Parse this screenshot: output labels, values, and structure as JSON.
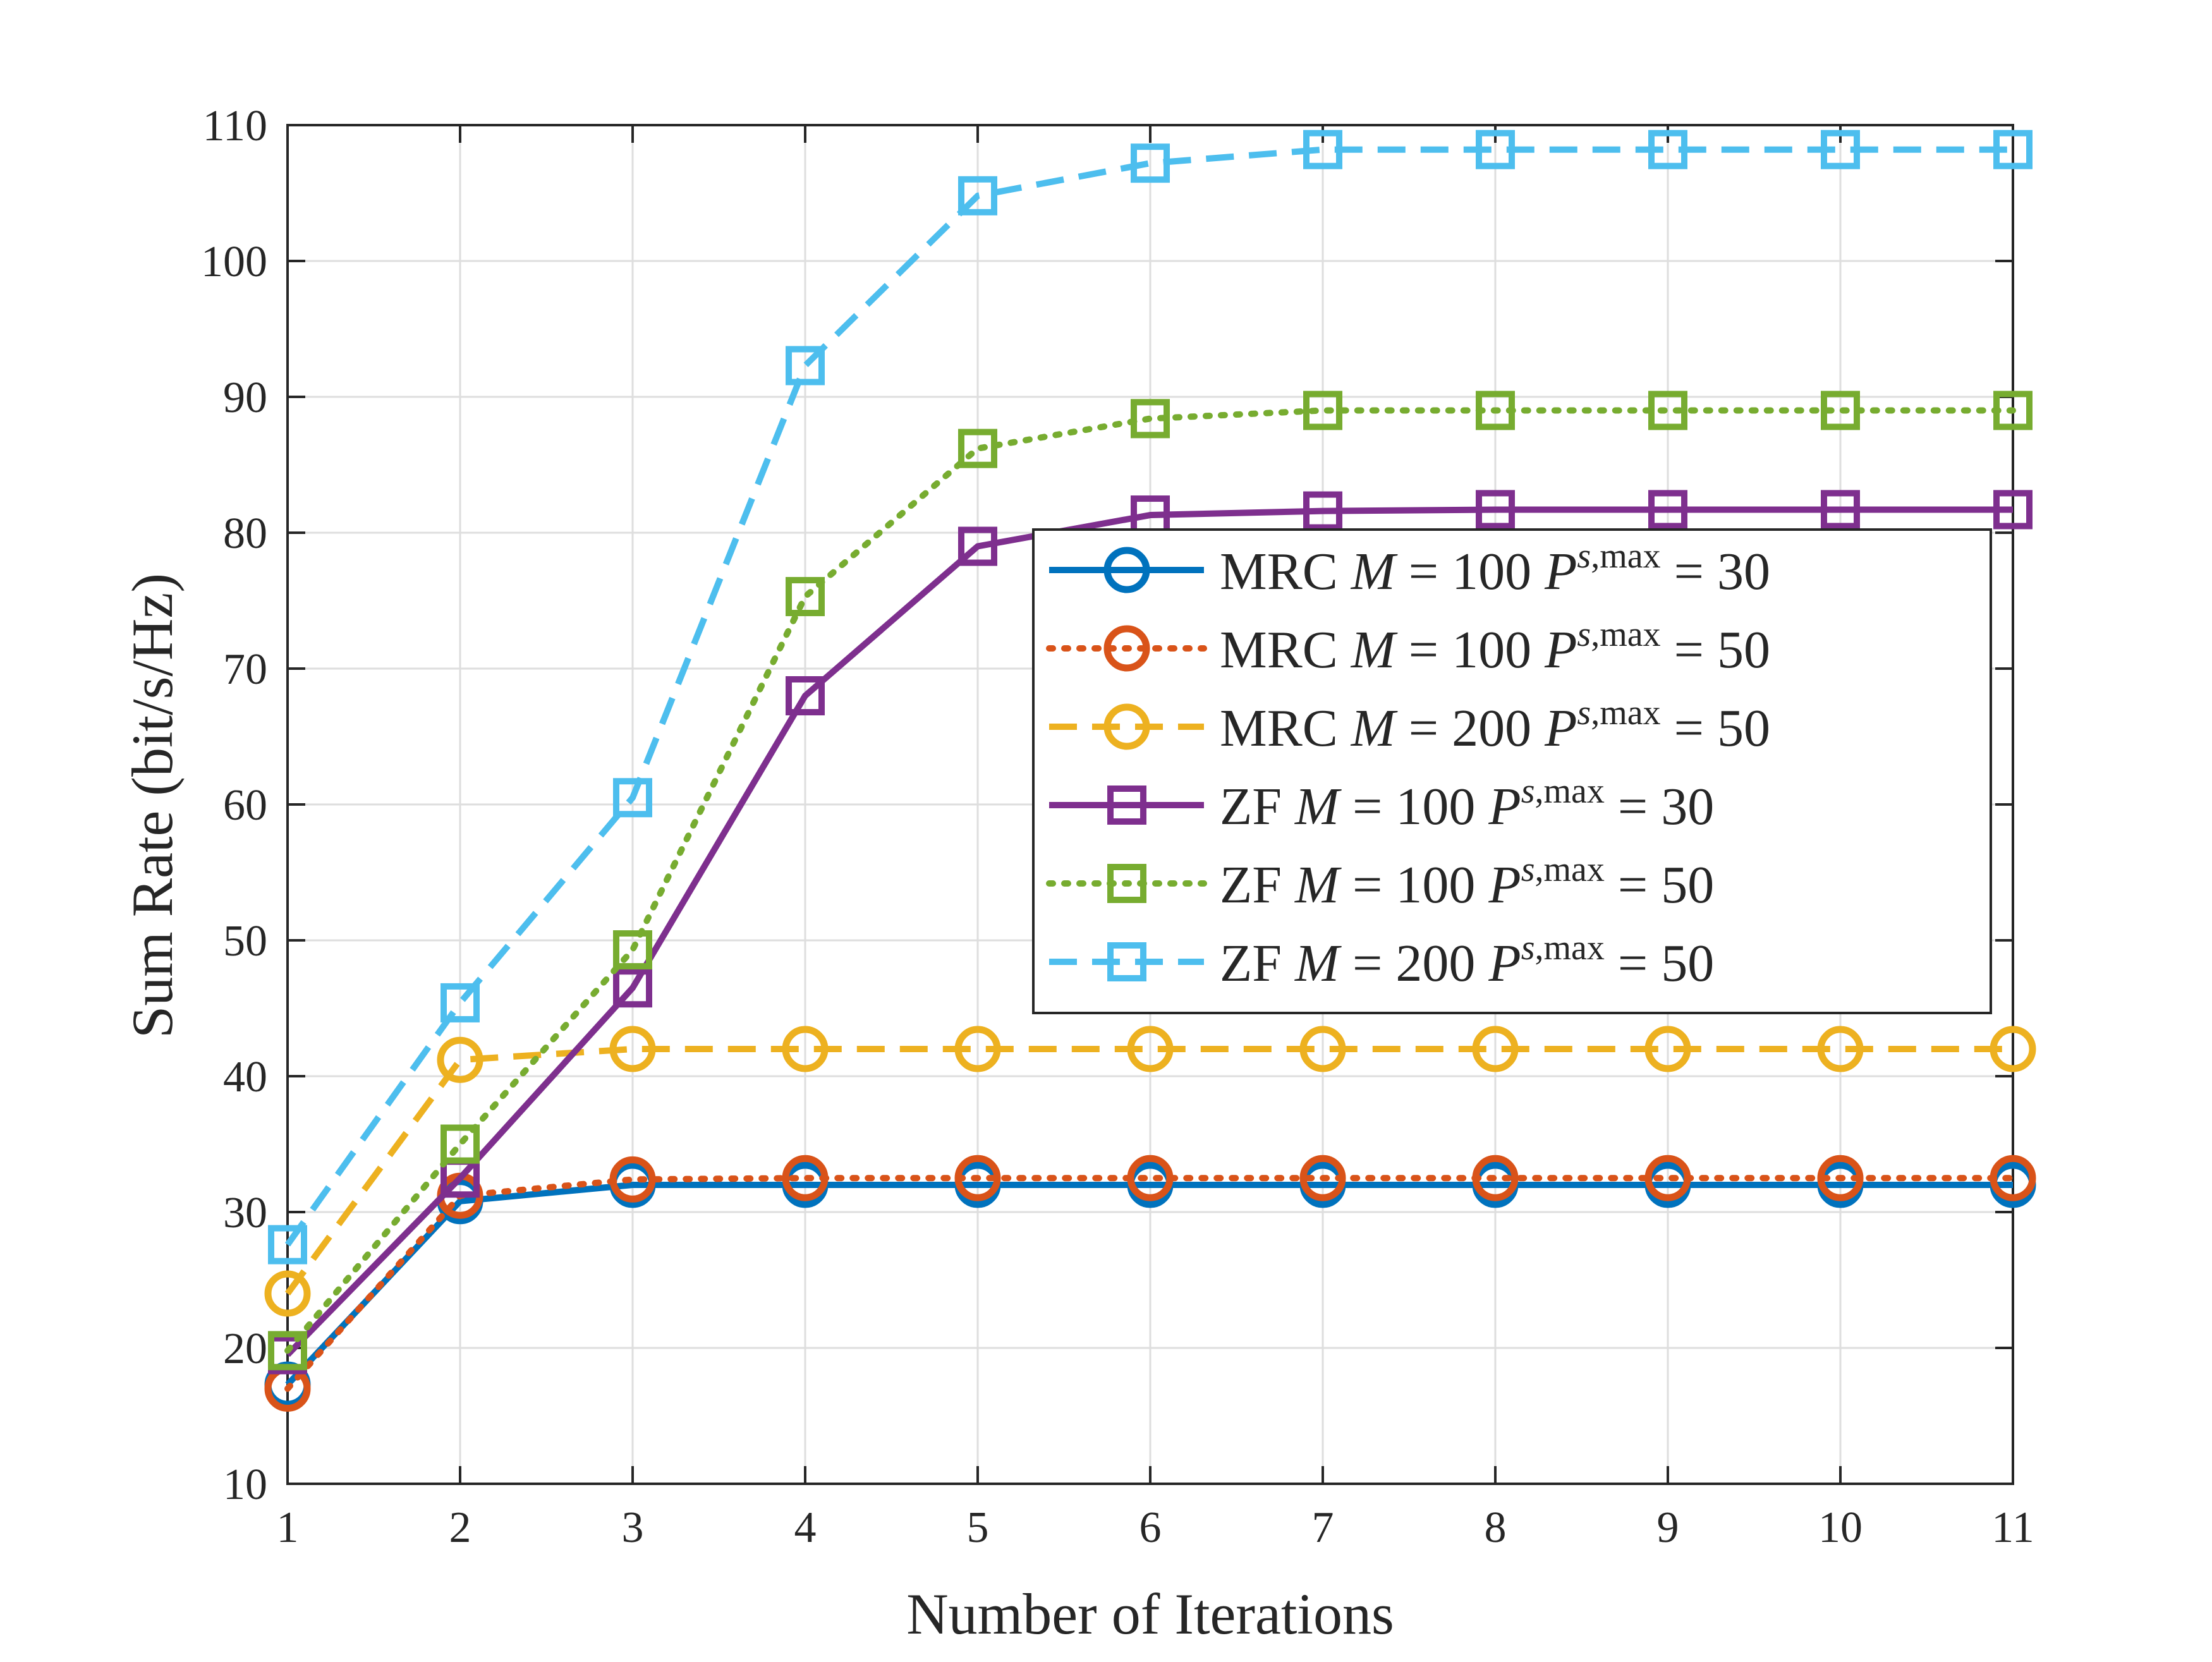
{
  "chart_data": {
    "type": "line",
    "title": "",
    "xlabel": "Number of Iterations",
    "ylabel": "Sum Rate (bit/s/Hz)",
    "xlim": [
      1,
      11
    ],
    "ylim": [
      10,
      110
    ],
    "xticks": [
      1,
      2,
      3,
      4,
      5,
      6,
      7,
      8,
      9,
      10,
      11
    ],
    "yticks": [
      10,
      20,
      30,
      40,
      50,
      60,
      70,
      80,
      90,
      100,
      110
    ],
    "grid": true,
    "legend_position": "center-right",
    "x": [
      1,
      2,
      3,
      4,
      5,
      6,
      7,
      8,
      9,
      10,
      11
    ],
    "series": [
      {
        "name": "MRC M = 100 P^{s,max} = 30",
        "legend": {
          "pre": "MRC",
          "m_val": "100",
          "p_val": "30"
        },
        "color": "#0072BD",
        "style": "solid",
        "marker": "circle",
        "values": [
          17.3,
          30.8,
          32.0,
          32.0,
          32.0,
          32.0,
          32.0,
          32.0,
          32.0,
          32.0,
          32.0
        ]
      },
      {
        "name": "MRC M = 100 P^{s,max} = 50",
        "legend": {
          "pre": "MRC",
          "m_val": "100",
          "p_val": "50"
        },
        "color": "#D95319",
        "style": "dotted",
        "marker": "circle",
        "values": [
          17.0,
          31.2,
          32.4,
          32.5,
          32.5,
          32.5,
          32.5,
          32.5,
          32.5,
          32.5,
          32.5
        ]
      },
      {
        "name": "MRC M = 200 P^{s,max} = 50",
        "legend": {
          "pre": "MRC",
          "m_val": "200",
          "p_val": "50"
        },
        "color": "#EDB120",
        "style": "dashed",
        "marker": "circle",
        "values": [
          24.0,
          41.2,
          42.0,
          42.0,
          42.0,
          42.0,
          42.0,
          42.0,
          42.0,
          42.0,
          42.0
        ]
      },
      {
        "name": "ZF M = 100 P^{s,max} = 30",
        "legend": {
          "pre": "ZF",
          "m_val": "100",
          "p_val": "30"
        },
        "color": "#7E2F8E",
        "style": "solid",
        "marker": "square",
        "values": [
          19.5,
          32.5,
          46.5,
          68.0,
          79.0,
          81.3,
          81.6,
          81.7,
          81.7,
          81.7,
          81.7
        ]
      },
      {
        "name": "ZF M = 100 P^{s,max} = 50",
        "legend": {
          "pre": "ZF",
          "m_val": "100",
          "p_val": "50"
        },
        "color": "#77AC30",
        "style": "dotted",
        "marker": "square",
        "values": [
          19.8,
          35.0,
          49.3,
          75.3,
          86.2,
          88.4,
          89.0,
          89.0,
          89.0,
          89.0,
          89.0
        ]
      },
      {
        "name": "ZF M = 200 P^{s,max} = 50",
        "legend": {
          "pre": "ZF",
          "m_val": "200",
          "p_val": "50"
        },
        "color": "#4DBEEE",
        "style": "dashed",
        "marker": "square",
        "values": [
          27.6,
          45.4,
          60.5,
          92.3,
          104.8,
          107.2,
          108.2,
          108.2,
          108.2,
          108.2,
          108.2
        ]
      }
    ]
  }
}
